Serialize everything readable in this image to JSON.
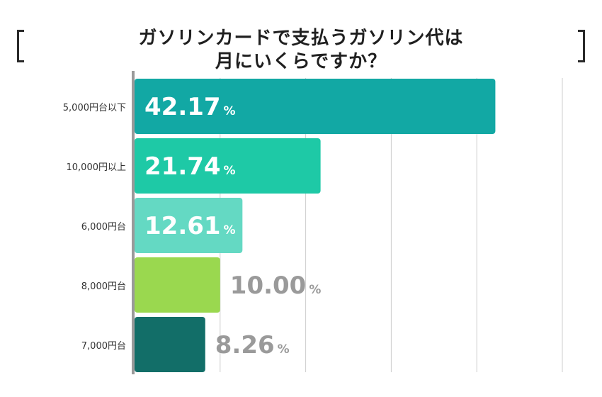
{
  "chart_data": {
    "type": "bar",
    "orientation": "horizontal",
    "title": [
      "ガソリンカードで支払うガソリン代は",
      "月にいくらですか？"
    ],
    "categories": [
      "5,000円台以下",
      "10,000円以上",
      "6,000円台",
      "8,000円台",
      "7,000円台"
    ],
    "values": [
      42.17,
      21.74,
      12.61,
      10.0,
      8.26
    ],
    "value_labels": [
      "42.17",
      "21.74",
      "12.61",
      "10.00",
      "8.26"
    ],
    "unit": "%",
    "colors": [
      "#12a8a4",
      "#1ec9a6",
      "#64d9c3",
      "#9ad84f",
      "#126e68"
    ],
    "xlim": [
      0,
      50
    ],
    "grid": true
  }
}
